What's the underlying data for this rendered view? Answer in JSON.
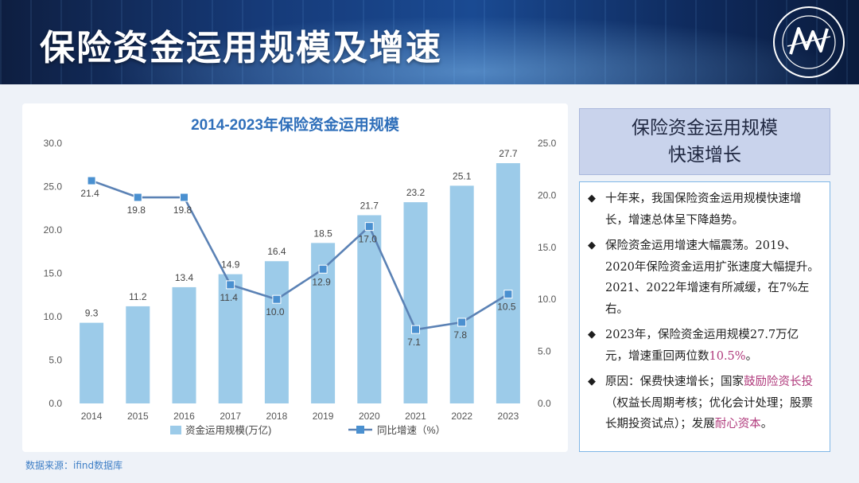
{
  "page": {
    "title": "保险资金运用规模及增速"
  },
  "side": {
    "title_line1": "保险资金运用规模",
    "title_line2": "快速增长",
    "bullets": [
      {
        "text": "十年来，我国保险资金运用规模快速增长，增速总体呈下降趋势。"
      },
      {
        "text": "保险资金运用增速大幅震荡。2019、2020年保险资金运用扩张速度大幅提升。2021、2022年增速有所减缓，在7%左右。"
      },
      {
        "pre": "2023年，保险资金运用规模27.7万亿元，增速重回两位数",
        "highlight": "10.5%",
        "post": "。"
      },
      {
        "pre": "原因：保费快速增长；国家",
        "highlight": "鼓励险资长投",
        "mid": "（权益长周期考核；优化会计处理；股票长期投资试点）；发展",
        "highlight2": "耐心资本",
        "post": "。"
      }
    ],
    "bullet_mark": "◆",
    "highlight_color": "#b03a7c"
  },
  "source": "数据来源：ifind数据库",
  "chart_data": {
    "type": "bar",
    "title": "2014-2023年保险资金运用规模",
    "categories": [
      "2014",
      "2015",
      "2016",
      "2017",
      "2018",
      "2019",
      "2020",
      "2021",
      "2022",
      "2023"
    ],
    "series": [
      {
        "name": "资金运用规模(万亿)",
        "type": "bar",
        "axis": "left",
        "color": "#9ccbe9",
        "values": [
          9.3,
          11.2,
          13.4,
          14.9,
          16.4,
          18.5,
          21.7,
          23.2,
          25.1,
          27.7
        ]
      },
      {
        "name": "同比增速（%）",
        "type": "line",
        "axis": "right",
        "color": "#5b82b5",
        "values": [
          21.4,
          19.8,
          19.8,
          11.4,
          10.0,
          12.9,
          17.0,
          7.1,
          7.8,
          10.5
        ]
      }
    ],
    "ylim_left": [
      0,
      30
    ],
    "yticks_left": [
      "0.0",
      "5.0",
      "10.0",
      "15.0",
      "20.0",
      "25.0",
      "30.0"
    ],
    "ylim_right": [
      0,
      25
    ],
    "yticks_right": [
      "0.0",
      "5.0",
      "10.0",
      "15.0",
      "20.0",
      "25.0"
    ],
    "grid": false,
    "legend": "bottom"
  }
}
